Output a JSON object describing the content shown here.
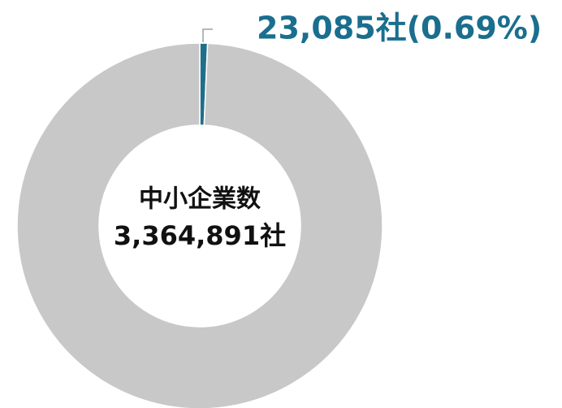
{
  "chart_data": {
    "type": "donut",
    "categories": [
      null,
      "中小企業数"
    ],
    "values": [
      23085,
      3364891
    ],
    "value_labels": [
      "23,085社(0.69%)",
      "3,364,891社"
    ],
    "colors": [
      "#1f6f8b",
      "#c8c8c8"
    ]
  }
}
